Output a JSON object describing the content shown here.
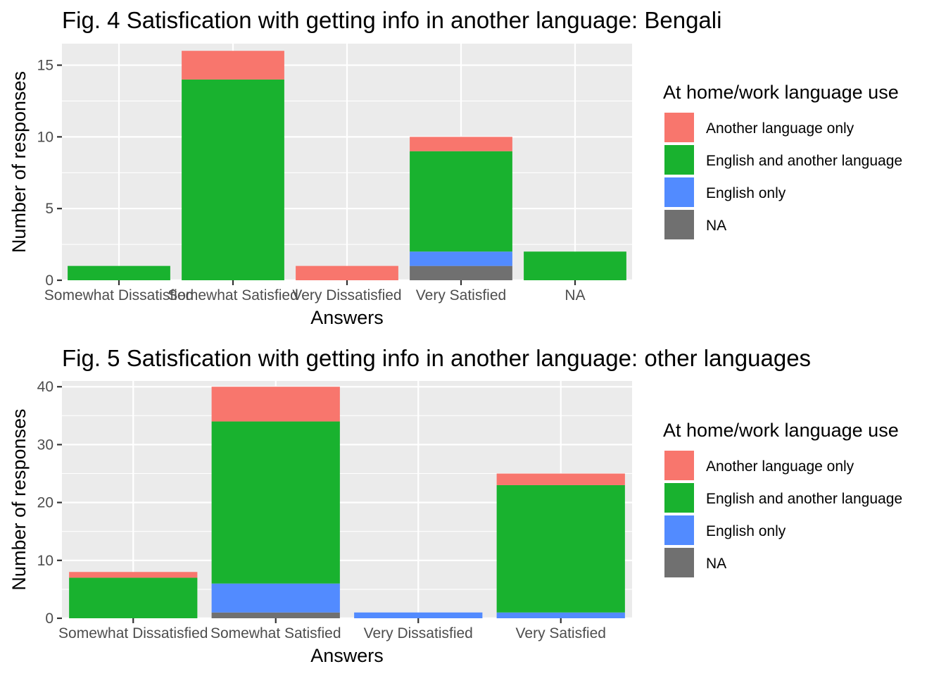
{
  "legend": {
    "title": "At home/work language use",
    "items": [
      {
        "label": "Another language only",
        "color": "#F8766D"
      },
      {
        "label": "English and another language",
        "color": "#19B22F"
      },
      {
        "label": "English only",
        "color": "#528BFF"
      },
      {
        "label": "NA",
        "color": "#707070"
      }
    ]
  },
  "chart_data": [
    {
      "type": "bar",
      "stacked": true,
      "title": "Fig. 4 Satisfication with getting info in another language: Bengali",
      "xlabel": "Answers",
      "ylabel": "Number of responses",
      "ylim": [
        0,
        16.5
      ],
      "yticks": [
        0,
        5,
        10,
        15
      ],
      "categories": [
        "Somewhat Dissatisfied",
        "Somewhat Satisfied",
        "Very Dissatisfied",
        "Very Satisfied",
        "NA"
      ],
      "series": [
        {
          "name": "NA",
          "values": [
            0,
            0,
            0,
            1,
            0
          ]
        },
        {
          "name": "English only",
          "values": [
            0,
            0,
            0,
            1,
            0
          ]
        },
        {
          "name": "English and another language",
          "values": [
            1,
            14,
            0,
            7,
            2
          ]
        },
        {
          "name": "Another language only",
          "values": [
            0,
            2,
            1,
            1,
            0
          ]
        }
      ]
    },
    {
      "type": "bar",
      "stacked": true,
      "title": "Fig. 5 Satisfication with getting info in another language: other languages",
      "xlabel": "Answers",
      "ylabel": "Number of responses",
      "ylim": [
        0,
        41
      ],
      "yticks": [
        0,
        10,
        20,
        30,
        40
      ],
      "categories": [
        "Somewhat Dissatisfied",
        "Somewhat Satisfied",
        "Very Dissatisfied",
        "Very Satisfied"
      ],
      "series": [
        {
          "name": "NA",
          "values": [
            0,
            1,
            0,
            0
          ]
        },
        {
          "name": "English only",
          "values": [
            0,
            5,
            1,
            1
          ]
        },
        {
          "name": "English and another language",
          "values": [
            7,
            28,
            0,
            22
          ]
        },
        {
          "name": "Another language only",
          "values": [
            1,
            6,
            0,
            2
          ]
        }
      ]
    }
  ]
}
